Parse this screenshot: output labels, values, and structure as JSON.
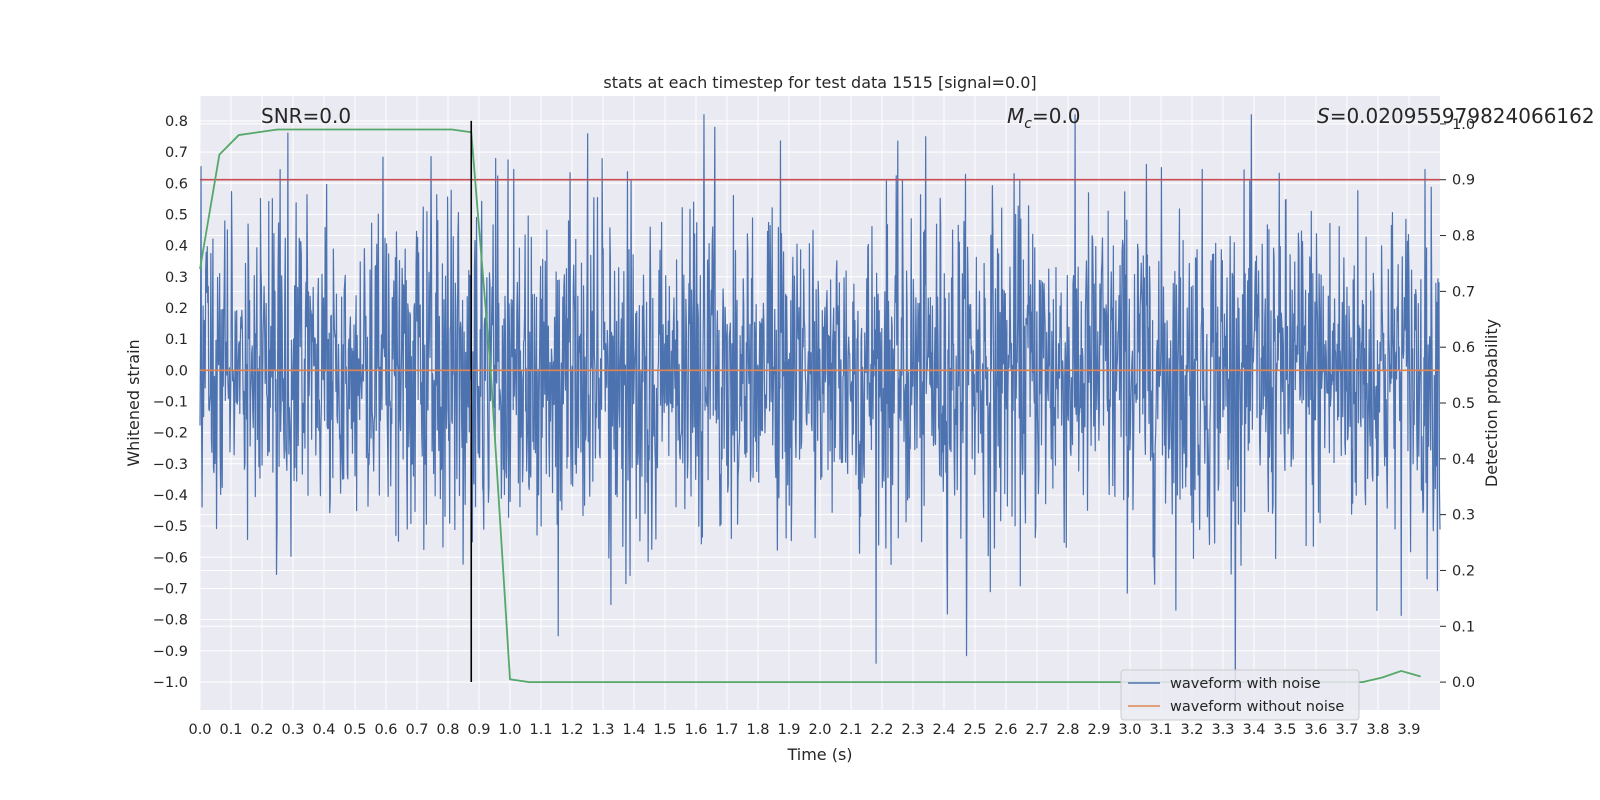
{
  "chart_data": {
    "type": "line",
    "title": "stats at each timestep for test data 1515 [signal=0.0]",
    "xlabel": "Time (s)",
    "ylabel": "Whitened strain",
    "y2label": "Detection probability",
    "xlim": [
      0.0,
      4.0
    ],
    "ylim": [
      -1.09,
      0.88
    ],
    "y2lim": [
      -0.05,
      1.05
    ],
    "xticks": [
      0.0,
      0.1,
      0.2,
      0.3,
      0.4,
      0.5,
      0.6,
      0.7,
      0.8,
      0.9,
      1.0,
      1.1,
      1.2,
      1.3,
      1.4,
      1.5,
      1.6,
      1.7,
      1.8,
      1.9,
      2.0,
      2.1,
      2.2,
      2.3,
      2.4,
      2.5,
      2.6,
      2.7,
      2.8,
      2.9,
      3.0,
      3.1,
      3.2,
      3.3,
      3.4,
      3.5,
      3.6,
      3.7,
      3.8,
      3.9
    ],
    "yticks": [
      0.8,
      0.7,
      0.6,
      0.5,
      0.4,
      0.3,
      0.2,
      0.1,
      0.0,
      -0.1,
      -0.2,
      -0.3,
      -0.4,
      -0.5,
      -0.6,
      -0.7,
      -0.8,
      -0.9,
      -1.0
    ],
    "y2ticks": [
      1.0,
      0.9,
      0.8,
      0.7,
      0.6,
      0.5,
      0.4,
      0.3,
      0.2,
      0.1,
      0.0
    ],
    "grid": true,
    "legend_position": "bottom-right",
    "annotations": {
      "snr": "SNR=0.0",
      "mc_symbol": "M",
      "mc_sub": "c",
      "mc_value": "=0.0",
      "s_symbol": "S",
      "s_value": "=0.020955979824066162"
    },
    "threshold_line": {
      "axis": "y2",
      "value": 0.9,
      "color": "#c44e52"
    },
    "vertical_marker": {
      "x": 0.875,
      "color": "#000000"
    },
    "series": [
      {
        "name": "waveform with noise",
        "axis": "y",
        "color": "#4c72b0",
        "kind": "noise",
        "amplitude_sd": 0.27,
        "x_range": [
          0.0,
          4.0
        ]
      },
      {
        "name": "waveform without noise",
        "axis": "y",
        "color": "#dd8452",
        "x": [
          0.0,
          4.0
        ],
        "values": [
          0.0,
          0.0
        ]
      },
      {
        "axis": "y2",
        "color": "#55a868",
        "x": [
          0.0,
          0.0625,
          0.125,
          0.1875,
          0.25,
          0.5,
          0.8125,
          0.875,
          0.9375,
          1.0,
          1.0625,
          1.25,
          2.0,
          3.0,
          3.75,
          3.8125,
          3.875,
          3.9375
        ],
        "values": [
          0.74,
          0.945,
          0.98,
          0.985,
          0.99,
          0.99,
          0.99,
          0.985,
          0.56,
          0.005,
          0.0,
          0.0,
          0.0,
          0.0,
          0.0,
          0.008,
          0.02,
          0.01
        ]
      }
    ]
  }
}
